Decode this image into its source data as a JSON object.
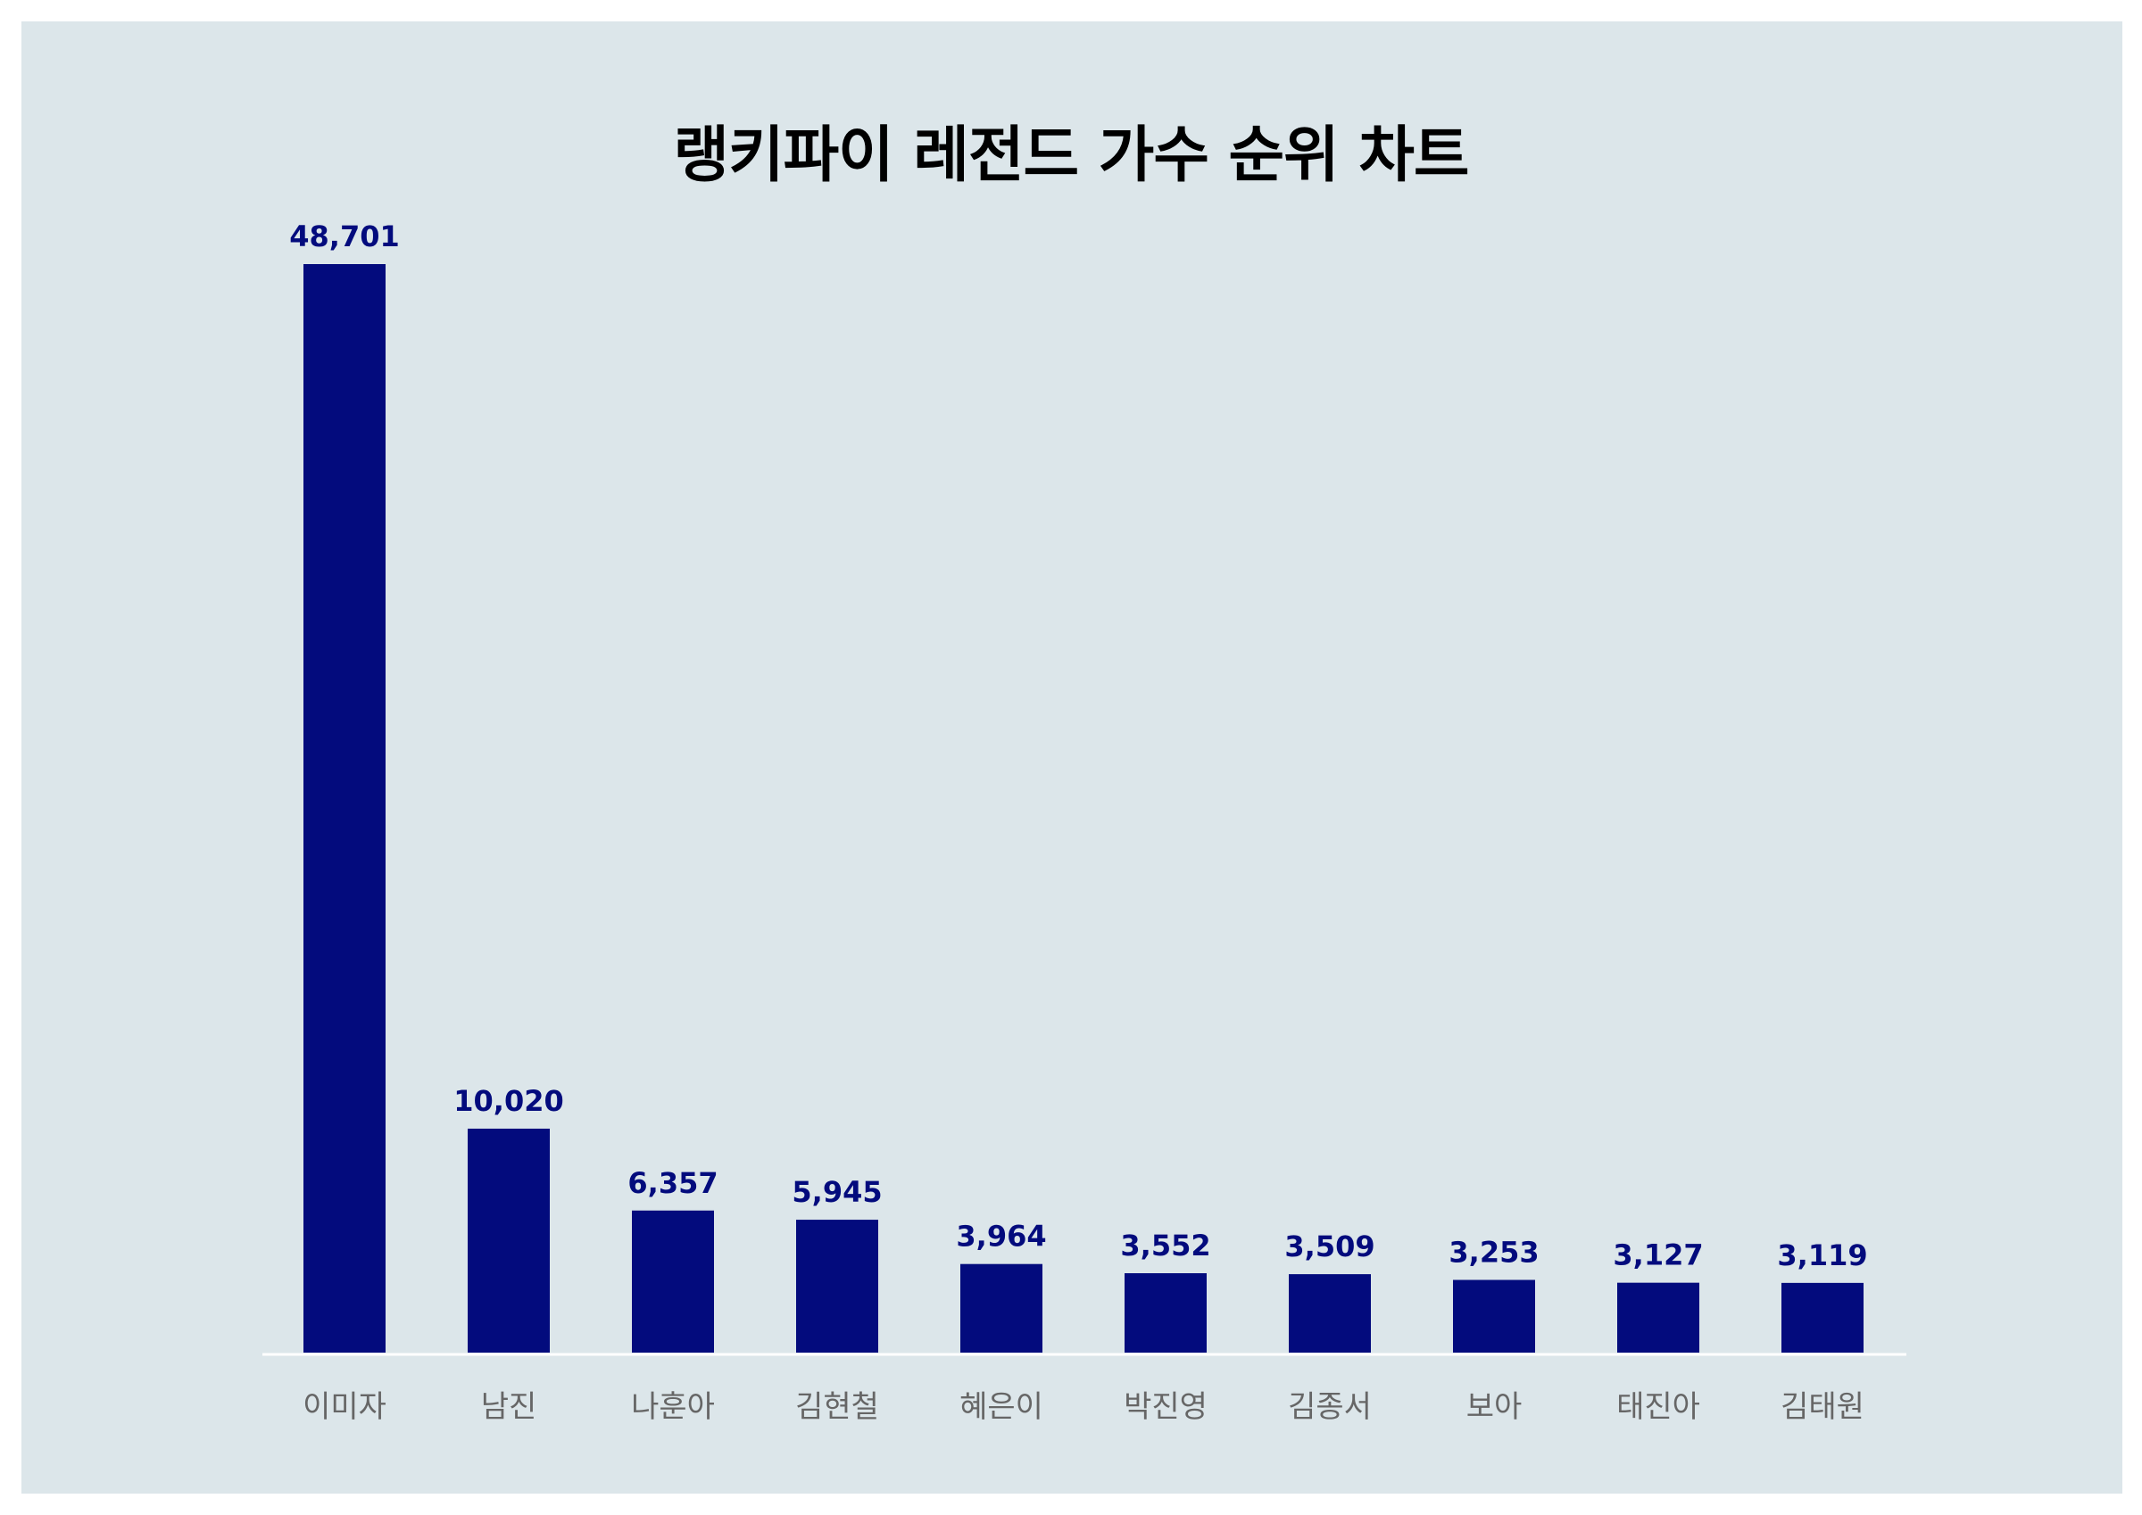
{
  "chart_data": {
    "type": "bar",
    "title": "랭키파이 레전드 가수 순위 차트",
    "xlabel": "",
    "ylabel": "",
    "categories": [
      "이미자",
      "남진",
      "나훈아",
      "김현철",
      "혜은이",
      "박진영",
      "김종서",
      "보아",
      "태진아",
      "김태원"
    ],
    "values": [
      48701,
      10020,
      6357,
      5945,
      3964,
      3552,
      3509,
      3253,
      3127,
      3119
    ],
    "value_labels": [
      "48,701",
      "10,020",
      "6,357",
      "5,945",
      "3,964",
      "3,552",
      "3,509",
      "3,253",
      "3,127",
      "3,119"
    ],
    "ylim": [
      0,
      48701
    ],
    "grid": false,
    "legend": "none",
    "colors": {
      "bar": "#030b7d",
      "value_label": "#030b7d",
      "category_label": "#666666",
      "background": "#dce6ea",
      "baseline": "#ffffff"
    }
  }
}
